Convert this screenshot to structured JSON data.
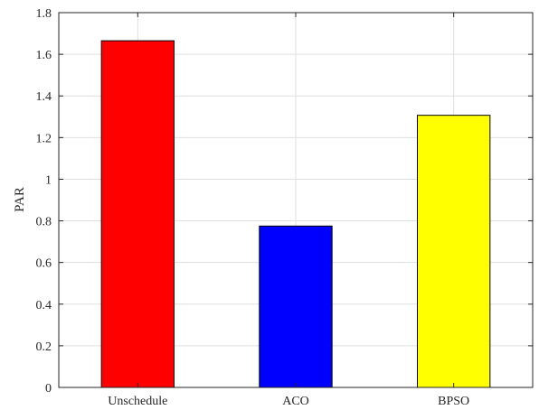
{
  "chart_data": {
    "type": "bar",
    "categories": [
      "Unschedule",
      "ACO",
      "BPSO"
    ],
    "values": [
      1.665,
      0.775,
      1.307
    ],
    "colors": [
      "#ff0000",
      "#0000ff",
      "#ffff00"
    ],
    "ylabel": "PAR",
    "xlabel": "",
    "title": "",
    "ylim": [
      0,
      1.8
    ],
    "yticks": [
      "0",
      "0.2",
      "0.4",
      "0.6",
      "0.8",
      "1",
      "1.2",
      "1.4",
      "1.6",
      "1.8"
    ],
    "grid": true,
    "legend": false
  }
}
